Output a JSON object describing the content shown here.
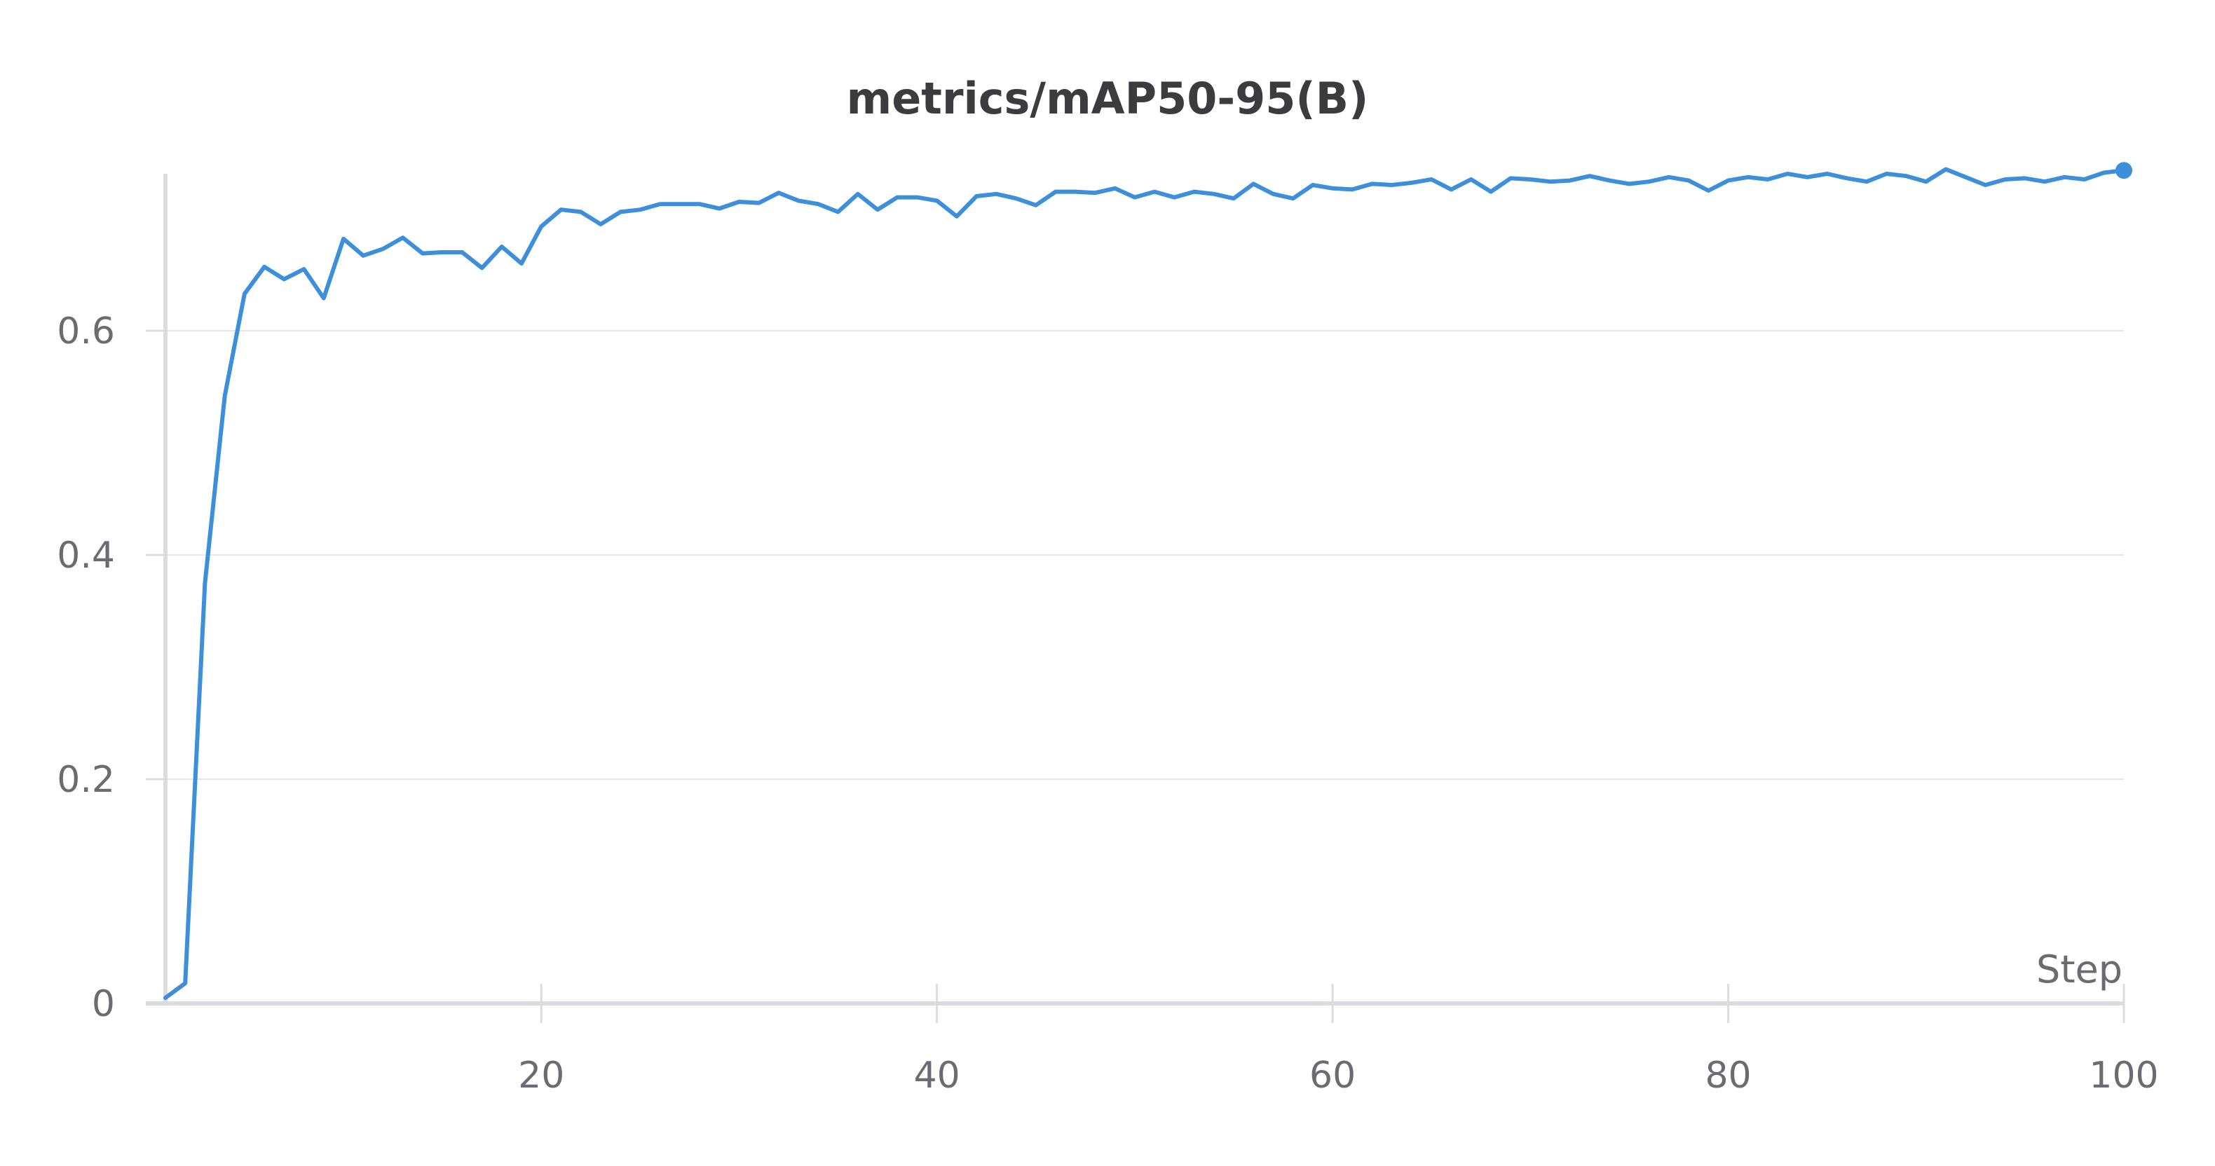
{
  "chart_data": {
    "type": "line",
    "title": "metrics/mAP50-95(B)",
    "xlabel": "Step",
    "ylabel": "",
    "xlim": [
      1,
      100
    ],
    "ylim": [
      0,
      0.74
    ],
    "x_ticks": [
      20,
      40,
      60,
      80,
      100
    ],
    "y_ticks": [
      0,
      0.2,
      0.4,
      0.6
    ],
    "grid": true,
    "legend": "none",
    "series_color": "#3d8fd9",
    "series": [
      {
        "x": [
          1,
          2,
          3,
          4,
          5,
          6,
          7,
          8,
          9,
          10,
          11,
          12,
          13,
          14,
          15,
          16,
          17,
          18,
          19,
          20,
          21,
          22,
          23,
          24,
          25,
          26,
          27,
          28,
          29,
          30,
          31,
          32,
          33,
          34,
          35,
          36,
          37,
          38,
          39,
          40,
          41,
          42,
          43,
          44,
          45,
          46,
          47,
          48,
          49,
          50,
          51,
          52,
          53,
          54,
          55,
          56,
          57,
          58,
          59,
          60,
          61,
          62,
          63,
          64,
          65,
          66,
          67,
          68,
          69,
          70,
          71,
          72,
          73,
          74,
          75,
          76,
          77,
          78,
          79,
          80,
          81,
          82,
          83,
          84,
          85,
          86,
          87,
          88,
          89,
          90,
          91,
          92,
          93,
          94,
          95,
          96,
          97,
          98,
          99,
          100
        ],
        "values": [
          0.005,
          0.018,
          0.375,
          0.542,
          0.633,
          0.657,
          0.646,
          0.655,
          0.629,
          0.682,
          0.667,
          0.673,
          0.683,
          0.669,
          0.67,
          0.67,
          0.656,
          0.675,
          0.66,
          0.693,
          0.708,
          0.706,
          0.695,
          0.706,
          0.708,
          0.713,
          0.713,
          0.713,
          0.709,
          0.715,
          0.714,
          0.723,
          0.716,
          0.713,
          0.706,
          0.722,
          0.708,
          0.719,
          0.719,
          0.716,
          0.702,
          0.72,
          0.722,
          0.718,
          0.712,
          0.724,
          0.724,
          0.723,
          0.727,
          0.719,
          0.724,
          0.719,
          0.724,
          0.722,
          0.718,
          0.731,
          0.722,
          0.718,
          0.73,
          0.727,
          0.726,
          0.731,
          0.73,
          0.732,
          0.735,
          0.726,
          0.735,
          0.724,
          0.736,
          0.735,
          0.733,
          0.734,
          0.738,
          0.734,
          0.731,
          0.733,
          0.737,
          0.734,
          0.725,
          0.734,
          0.737,
          0.735,
          0.74,
          0.737,
          0.74,
          0.736,
          0.733,
          0.74,
          0.738,
          0.733,
          0.744,
          0.737,
          0.73,
          0.735,
          0.736,
          0.733,
          0.737,
          0.735,
          0.741,
          0.743
        ]
      }
    ]
  }
}
